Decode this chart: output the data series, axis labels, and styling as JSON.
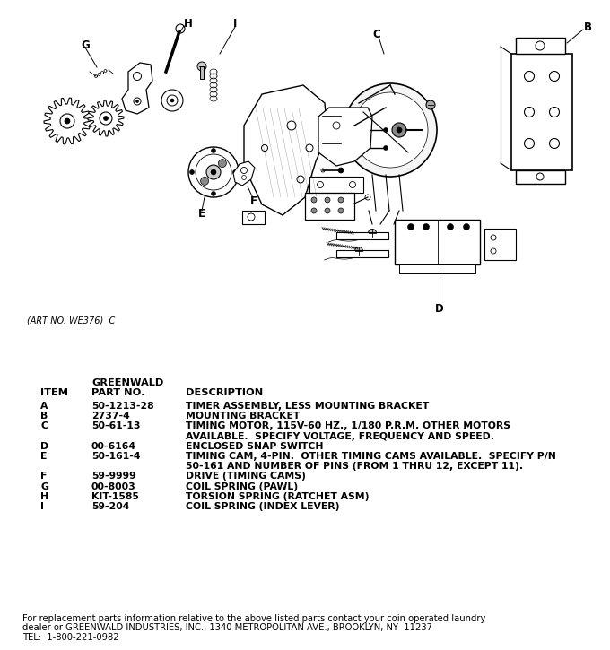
{
  "bg_color": "#ffffff",
  "art_no": "(ART NO. WE376)  C",
  "header_greenwald": "GREENWALD",
  "header_col1": "ITEM",
  "header_col2": "PART NO.",
  "header_col3": "DESCRIPTION",
  "parts": [
    {
      "item": "A",
      "part_no": "50-1213-28",
      "desc": [
        "TIMER ASSEMBLY, LESS MOUNTING BRACKET"
      ]
    },
    {
      "item": "B",
      "part_no": "2737-4",
      "desc": [
        "MOUNTING BRACKET"
      ]
    },
    {
      "item": "C",
      "part_no": "50-61-13",
      "desc": [
        "TIMING MOTOR, 115V-60 HZ., 1/180 P.R.M. OTHER MOTORS",
        "AVAILABLE.  SPECIFY VOLTAGE, FREQUENCY AND SPEED."
      ]
    },
    {
      "item": "D",
      "part_no": "00-6164",
      "desc": [
        "ENCLOSED SNAP SWITCH"
      ]
    },
    {
      "item": "E",
      "part_no": "50-161-4",
      "desc": [
        "TIMING CAM, 4-PIN.  OTHER TIMING CAMS AVAILABLE.  SPECIFY P/N",
        "50-161 AND NUMBER OF PINS (FROM 1 THRU 12, EXCEPT 11)."
      ]
    },
    {
      "item": "F",
      "part_no": "59-9999",
      "desc": [
        "DRIVE (TIMING CAMS)"
      ]
    },
    {
      "item": "G",
      "part_no": "00-8003",
      "desc": [
        "COIL SPRING (PAWL)"
      ]
    },
    {
      "item": "H",
      "part_no": "KIT-1585",
      "desc": [
        "TORSION SPRING (RATCHET ASM)"
      ]
    },
    {
      "item": "I",
      "part_no": "59-204",
      "desc": [
        "COIL SPRING (INDEX LEVER)"
      ]
    }
  ],
  "footer_lines": [
    "For replacement parts information relative to the above listed parts contact your coin operated laundry",
    "dealer or GREENWALD INDUSTRIES, INC., 1340 METROPOLITAN AVE., BROOKLYN, NY  11237",
    "TEL:  1-800-221-0982"
  ],
  "fig_w": 6.8,
  "fig_h": 7.25,
  "dpi": 100
}
